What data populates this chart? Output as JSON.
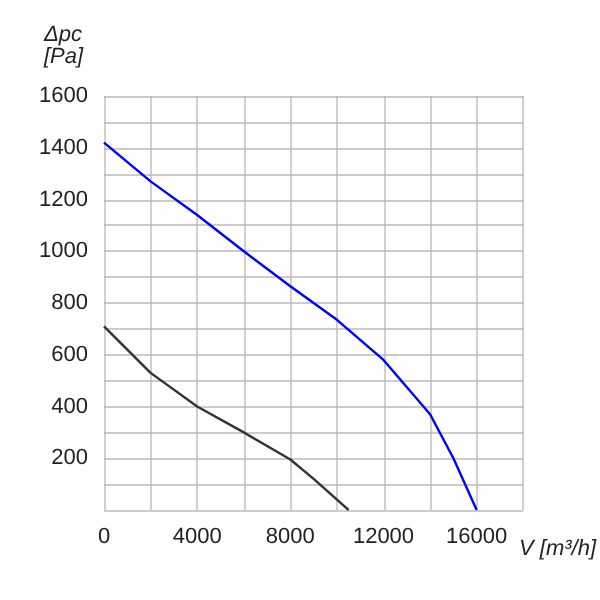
{
  "chart_data": {
    "type": "line",
    "xlabel": "V [m³/h]",
    "ylabel": "Δpc\n[Pa]",
    "xlim": [
      0,
      18000
    ],
    "xticks": [
      0,
      {
        "value": 2000,
        "label": null
      },
      4000,
      {
        "value": 6000,
        "label": null
      },
      8000,
      {
        "value": 10000,
        "label": null
      },
      12000,
      {
        "value": 14000,
        "label": null
      },
      16000,
      {
        "value": 18000,
        "label": null
      }
    ],
    "ylim": [
      0,
      1600
    ],
    "yticks": [
      {
        "value": 0,
        "label": null
      },
      {
        "value": 100,
        "label": null
      },
      200,
      {
        "value": 300,
        "label": null
      },
      400,
      {
        "value": 500,
        "label": null
      },
      600,
      {
        "value": 700,
        "label": null
      },
      800,
      {
        "value": 900,
        "label": null
      },
      1000,
      {
        "value": 1100,
        "label": null
      },
      1200,
      {
        "value": 1300,
        "label": null
      },
      1400,
      {
        "value": 1500,
        "label": null
      },
      1600
    ],
    "grid": true,
    "marker": "none",
    "line_style": "solid",
    "series": [
      {
        "color": "#0000ff",
        "x": [
          0,
          2000,
          4000,
          6000,
          8000,
          10000,
          12000,
          14000,
          15000,
          16000
        ],
        "values": [
          1420,
          1270,
          1140,
          1000,
          865,
          735,
          580,
          370,
          200,
          0
        ]
      },
      {
        "color": "#333333",
        "x": [
          0,
          2000,
          4000,
          6000,
          8000,
          9000,
          10500
        ],
        "values": [
          710,
          530,
          400,
          300,
          195,
          120,
          0
        ]
      }
    ]
  }
}
